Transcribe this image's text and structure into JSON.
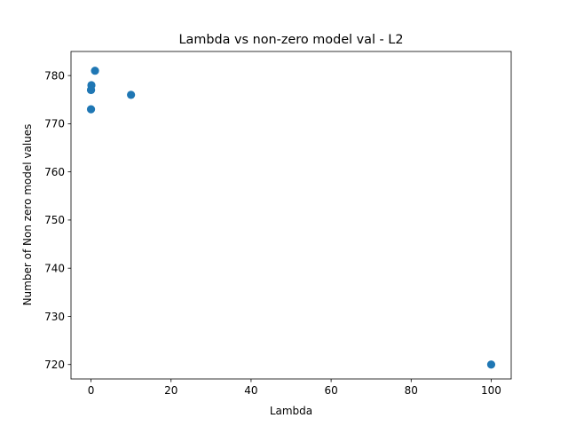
{
  "chart_data": {
    "type": "scatter",
    "title": "Lambda vs non-zero model val - L2",
    "xlabel": "Lambda",
    "ylabel": "Number of Non zero model values",
    "xlim": [
      -5.0,
      105.0
    ],
    "ylim": [
      717.0,
      785.0
    ],
    "xticks": [
      0,
      20,
      40,
      60,
      80,
      100
    ],
    "yticks": [
      720,
      730,
      740,
      750,
      760,
      770,
      780
    ],
    "grid": false,
    "legend": "none",
    "marker_color": "#1f77b4",
    "series": [
      {
        "points": [
          {
            "x": 0.0,
            "y": 773
          },
          {
            "x": 0.001,
            "y": 777
          },
          {
            "x": 0.01,
            "y": 777
          },
          {
            "x": 0.1,
            "y": 778
          },
          {
            "x": 1,
            "y": 781
          },
          {
            "x": 10,
            "y": 776
          },
          {
            "x": 100,
            "y": 720
          }
        ]
      }
    ]
  }
}
